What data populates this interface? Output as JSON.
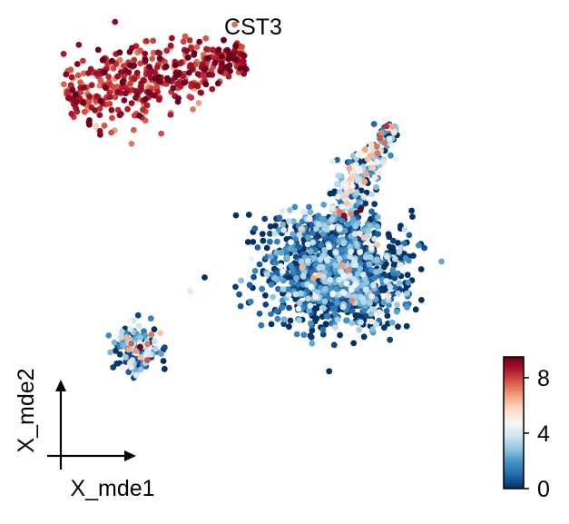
{
  "chart_data": {
    "type": "scatter",
    "title": "CST3",
    "xlabel": "X_mde1",
    "ylabel": "X_mde2",
    "axes_style": "arrow-axes-corner",
    "colorbar": {
      "cmap": "RdBu_r",
      "vmin": 0,
      "vmax": 9.5,
      "ticks": [
        0,
        4,
        8
      ],
      "tick_labels": [
        "0",
        "4",
        "8"
      ],
      "stops": [
        "#053061",
        "#2166ac",
        "#4393c3",
        "#92c5de",
        "#d1e5f0",
        "#f7f7f7",
        "#fddbc7",
        "#f4a582",
        "#d6604d",
        "#b2182b",
        "#67001f"
      ]
    },
    "xlim": [
      -1.0,
      1.0
    ],
    "ylim": [
      -1.0,
      1.0
    ],
    "clusters": [
      {
        "name": "upper-left high-expression band",
        "shape": "band",
        "start": [
          -0.94,
          0.74
        ],
        "end": [
          -0.09,
          0.95
        ],
        "width": 0.1,
        "n": 460,
        "value_mean": 8.3,
        "value_sd": 0.8
      },
      {
        "name": "right main cluster",
        "shape": "blob",
        "center": [
          0.36,
          -0.18
        ],
        "spread": [
          0.16,
          0.11
        ],
        "n": 1100,
        "value_mean": 0.7,
        "value_sd": 1.9
      },
      {
        "name": "right upper arm",
        "shape": "band",
        "start": [
          0.34,
          0.17
        ],
        "end": [
          0.62,
          0.6
        ],
        "width": 0.05,
        "n": 220,
        "value_mean": 2.6,
        "value_sd": 2.6
      },
      {
        "name": "right mid ring",
        "shape": "blob",
        "center": [
          0.3,
          0.08
        ],
        "spread": [
          0.14,
          0.05
        ],
        "n": 240,
        "value_mean": 0.8,
        "value_sd": 1.8
      },
      {
        "name": "lower-left small cluster",
        "shape": "blob",
        "center": [
          -0.6,
          -0.52
        ],
        "spread": [
          0.06,
          0.06
        ],
        "n": 140,
        "value_mean": 1.4,
        "value_sd": 2.3
      },
      {
        "name": "isolated outlier",
        "shape": "point",
        "point": [
          -0.35,
          -0.23
        ],
        "n": 1,
        "value_mean": 5.5,
        "value_sd": 0
      }
    ]
  }
}
